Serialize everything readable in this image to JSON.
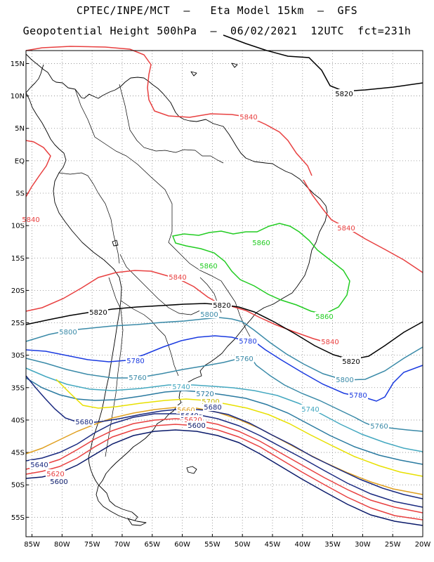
{
  "header": {
    "line1": "CPTEC/INPE/MCT  –   Eta Model 15km  –  GFS",
    "line2": "Geopotential Height 500hPa  –  06/02/2021  12UTC  fct=231h"
  },
  "axes": {
    "lat_labels": [
      "15N",
      "10N",
      "5N",
      "EQ",
      "5S",
      "10S",
      "15S",
      "20S",
      "25S",
      "30S",
      "35S",
      "40S",
      "45S",
      "50S",
      "55S"
    ],
    "lon_labels": [
      "85W",
      "80W",
      "75W",
      "70W",
      "65W",
      "60W",
      "55W",
      "50W",
      "45W",
      "40W",
      "35W",
      "30W",
      "25W",
      "20W"
    ],
    "lat_range": [
      17,
      -58
    ],
    "lon_range": [
      -86,
      -20
    ]
  },
  "contours": [
    {
      "value": "5860",
      "color": "#22cc22"
    },
    {
      "value": "5840",
      "color": "#e84040"
    },
    {
      "value": "5820",
      "color": "#000000"
    },
    {
      "value": "5800",
      "color": "#3a8aa8"
    },
    {
      "value": "5780",
      "color": "#1a3ae0"
    },
    {
      "value": "5760",
      "color": "#3a8aa8"
    },
    {
      "value": "5740",
      "color": "#44a8c0"
    },
    {
      "value": "5720",
      "color": "#2a7aa0"
    },
    {
      "value": "5700",
      "color": "#e8e000"
    },
    {
      "value": "5680",
      "color": "#e0a020"
    },
    {
      "value": "5660",
      "color": "#e84040"
    },
    {
      "value": "5640",
      "color": "#1a2a80"
    },
    {
      "value": "5620",
      "color": "#e84040"
    },
    {
      "value": "5600",
      "color": "#0a1a6a"
    }
  ],
  "contour_labels": [
    {
      "text": "5820",
      "color": "#000000"
    },
    {
      "text": "5840",
      "color": "#e84040"
    },
    {
      "text": "5840",
      "color": "#e84040"
    },
    {
      "text": "5840",
      "color": "#e84040"
    },
    {
      "text": "5840",
      "color": "#e84040"
    },
    {
      "text": "5840",
      "color": "#e84040"
    },
    {
      "text": "5860",
      "color": "#22cc22"
    },
    {
      "text": "5860",
      "color": "#22cc22"
    },
    {
      "text": "5860",
      "color": "#22cc22"
    },
    {
      "text": "5820",
      "color": "#000000"
    },
    {
      "text": "5820",
      "color": "#000000"
    },
    {
      "text": "5820",
      "color": "#000000"
    },
    {
      "text": "5800",
      "color": "#3a8aa8"
    },
    {
      "text": "5800",
      "color": "#3a8aa8"
    },
    {
      "text": "5800",
      "color": "#3a8aa8"
    },
    {
      "text": "5780",
      "color": "#1a3ae0"
    },
    {
      "text": "5780",
      "color": "#1a3ae0"
    },
    {
      "text": "5780",
      "color": "#1a3ae0"
    },
    {
      "text": "5760",
      "color": "#3a8aa8"
    },
    {
      "text": "5760",
      "color": "#3a8aa8"
    },
    {
      "text": "5760",
      "color": "#3a8aa8"
    },
    {
      "text": "5740",
      "color": "#44a8c0"
    },
    {
      "text": "5740",
      "color": "#44a8c0"
    },
    {
      "text": "5720",
      "color": "#2a7aa0"
    },
    {
      "text": "5700",
      "color": "#c8b800"
    },
    {
      "text": "5680",
      "color": "#1a2a80"
    },
    {
      "text": "5680",
      "color": "#1a2a80"
    },
    {
      "text": "5660",
      "color": "#e0a020"
    },
    {
      "text": "5640",
      "color": "#1a2a80"
    },
    {
      "text": "5640",
      "color": "#1a2a80"
    },
    {
      "text": "5620",
      "color": "#e84040"
    },
    {
      "text": "5620",
      "color": "#e84040"
    },
    {
      "text": "5600",
      "color": "#0a1a6a"
    },
    {
      "text": "5600",
      "color": "#0a1a6a"
    }
  ]
}
